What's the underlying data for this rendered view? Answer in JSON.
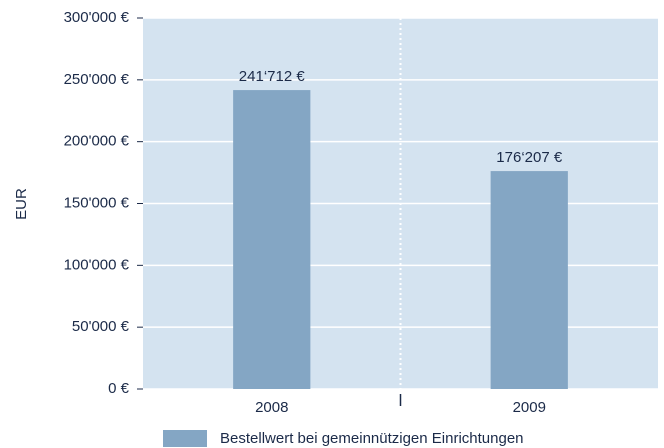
{
  "chart_data": {
    "type": "bar",
    "y_label": "EUR",
    "categories": [
      "2008",
      "2009"
    ],
    "series": [
      {
        "name": "Bestellwert bei gemeinnützigen Einrichtungen",
        "color": "#84a6c4",
        "values": [
          241712,
          176207
        ],
        "value_labels": [
          "241‘712 €",
          "176‘207 €"
        ]
      }
    ],
    "ylim": [
      0,
      300000
    ],
    "yticks": [
      {
        "value": 0,
        "label": "0 €"
      },
      {
        "value": 50000,
        "label": "50'000 €"
      },
      {
        "value": 100000,
        "label": "100'000 €"
      },
      {
        "value": 150000,
        "label": "150'000 €"
      },
      {
        "value": 200000,
        "label": "200'000 €"
      },
      {
        "value": 250000,
        "label": "250'000 €"
      },
      {
        "value": 300000,
        "label": "300'000 €"
      }
    ],
    "grid": true,
    "background": "#d4e3f0"
  }
}
